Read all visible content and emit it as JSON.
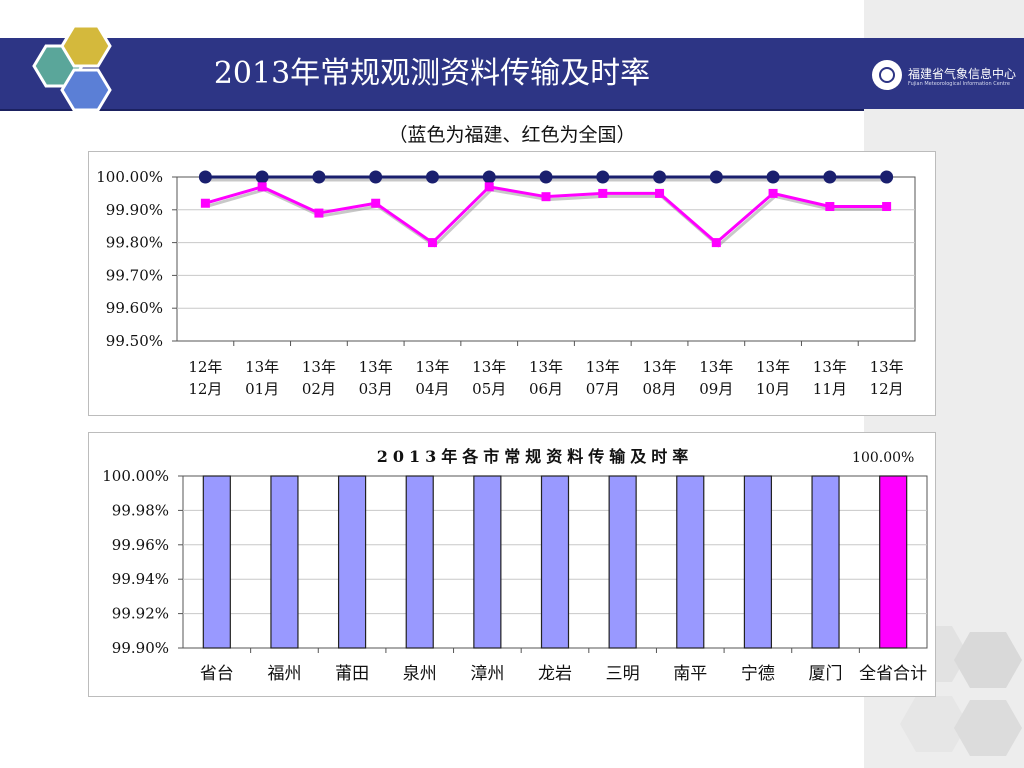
{
  "slide": {
    "title": "2013年常规观测资料传输及时率",
    "subtitle": "（蓝色为福建、红色为全国）",
    "logo_text": "福建省气象信息中心",
    "logo_subtext": "Fujian Meteorological Information Centre"
  },
  "colors": {
    "header": "#2d3585",
    "fujian_line": "#1a1f6e",
    "national_line": "#ff00ff",
    "bar": "#9999ff",
    "bar_highlight": "#ff00ff"
  },
  "chart_data": [
    {
      "type": "line",
      "categories": [
        "12年\n12月",
        "13年\n01月",
        "13年\n02月",
        "13年\n03月",
        "13年\n04月",
        "13年\n05月",
        "13年\n06月",
        "13年\n07月",
        "13年\n08月",
        "13年\n09月",
        "13年\n10月",
        "13年\n11月",
        "13年\n12月"
      ],
      "series": [
        {
          "values": [
            100.0,
            100.0,
            100.0,
            100.0,
            100.0,
            100.0,
            100.0,
            100.0,
            100.0,
            100.0,
            100.0,
            100.0,
            100.0
          ],
          "color": "#1a1f6e",
          "marker": "circle"
        },
        {
          "values": [
            99.92,
            99.97,
            99.89,
            99.92,
            99.8,
            99.97,
            99.94,
            99.95,
            99.95,
            99.8,
            99.95,
            99.91,
            99.91
          ],
          "color": "#ff00ff",
          "marker": "square"
        }
      ],
      "yticks": [
        "100.00%",
        "99.90%",
        "99.80%",
        "99.70%",
        "99.60%",
        "99.50%"
      ],
      "ylim": [
        99.5,
        100.0
      ],
      "grid": true
    },
    {
      "type": "bar",
      "title": "2013年各市常规资料传输及时率",
      "categories": [
        "省台",
        "福州",
        "莆田",
        "泉州",
        "漳州",
        "龙岩",
        "三明",
        "南平",
        "宁德",
        "厦门",
        "全省合计"
      ],
      "values": [
        100.0,
        100.0,
        100.0,
        100.0,
        100.0,
        100.0,
        100.0,
        100.0,
        100.0,
        100.0,
        100.0
      ],
      "data_labels": [
        "",
        "",
        "",
        "",
        "",
        "",
        "",
        "",
        "",
        "",
        "100.00%"
      ],
      "highlight_index": 10,
      "yticks": [
        "100.00%",
        "99.98%",
        "99.96%",
        "99.94%",
        "99.92%",
        "99.90%"
      ],
      "ylim": [
        99.9,
        100.0
      ],
      "grid": true
    }
  ]
}
